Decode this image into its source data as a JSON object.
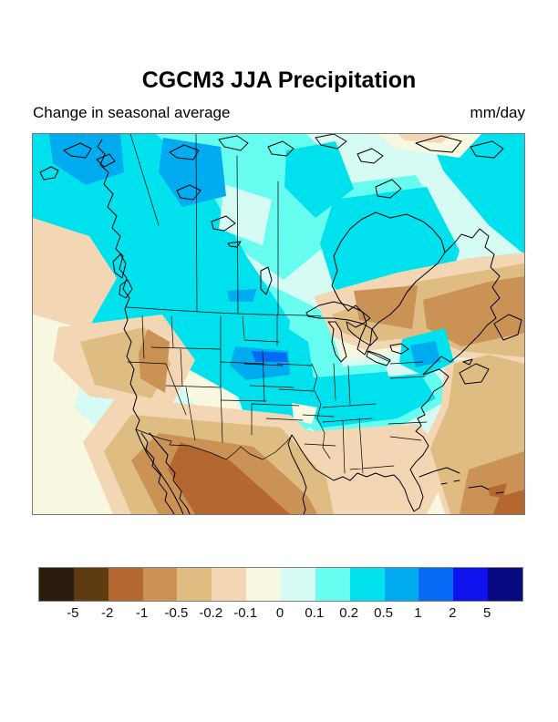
{
  "header": {
    "title": "CGCM3 JJA Precipitation",
    "subtitle_left": "Change in seasonal average",
    "subtitle_right": "mm/day"
  },
  "chart_data": {
    "type": "heatmap",
    "subtype": "filled-contour-map",
    "title": "CGCM3 JJA Precipitation",
    "subtitle": "Change in seasonal average",
    "units": "mm/day",
    "model": "CGCM3",
    "season": "JJA",
    "variable": "Precipitation change in seasonal average",
    "region": "North America",
    "map_outline_color": "#000000",
    "frame_color": "#7a7a7a",
    "colorbar": {
      "orientation": "horizontal",
      "position": "bottom",
      "border_color": "#808080",
      "levels": [
        -5,
        -2,
        -1,
        -0.5,
        -0.2,
        -0.1,
        0,
        0.1,
        0.2,
        0.5,
        1,
        2,
        5
      ],
      "tick_labels": [
        "-5",
        "-2",
        "-1",
        "-0.5",
        "-0.2",
        "-0.1",
        "0",
        "0.1",
        "0.2",
        "0.5",
        "1",
        "2",
        "5"
      ],
      "colors": [
        "#2b1d0d",
        "#5e3b11",
        "#b4682f",
        "#ca9255",
        "#debc82",
        "#f3d7b5",
        "#f8f7df",
        "#d5fbf4",
        "#66fdf0",
        "#00e1ee",
        "#00abef",
        "#0569f4",
        "#0d12ef",
        "#060980"
      ]
    },
    "qualitative_pattern": {
      "positive_anomaly_regions": [
        "Alaska",
        "western and central Canada",
        "Hudson Bay area",
        "northern Great Plains (local max over South Dakota / Nebraska)",
        "Midwest and Ohio Valley",
        "mid-Atlantic coast",
        "New Brunswick coast"
      ],
      "negative_anomaly_regions": [
        "Pacific Northwest offshore",
        "Great Basin and Southwest US",
        "northern Mexico and Baja California (strongest)",
        "Great Lakes and southern Ontario",
        "eastern Quebec, Gulf of St. Lawrence and Atlantic Canada",
        "western North Atlantic"
      ]
    }
  }
}
